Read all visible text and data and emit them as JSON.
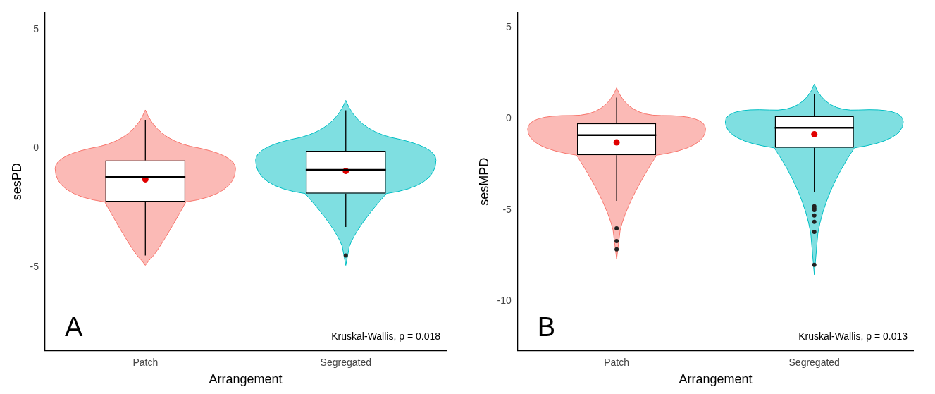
{
  "chart_data": [
    {
      "type": "box",
      "xlabel": "Arrangement",
      "ylabel": "sesPD",
      "categories": [
        "Patch",
        "Segregated"
      ],
      "boxes": [
        {
          "low": -4.5,
          "q1": -2.25,
          "median": -1.2,
          "q3": -0.5,
          "high": 1.2,
          "mean": -1.3
        },
        {
          "low": -3.3,
          "q1": -1.9,
          "median": -0.9,
          "q3": -0.1,
          "high": 1.6,
          "mean": -0.95,
          "outliers": [
            -4.5
          ]
        }
      ],
      "ylim": [
        -8.5,
        5.7
      ],
      "yticks": [
        -5,
        0,
        5
      ],
      "grid": false,
      "legend": false,
      "annotations": [
        "A",
        "Kruskal-Wallis, p = 0.018"
      ]
    },
    {
      "type": "box",
      "xlabel": "Arrangement",
      "ylabel": "sesMPD",
      "categories": [
        "Patch",
        "Segregated"
      ],
      "boxes": [
        {
          "low": -4.5,
          "q1": -2.0,
          "median": -0.9,
          "q3": -0.25,
          "high": 1.15,
          "mean": -1.3,
          "outliers": [
            -6.0,
            -6.7,
            -7.15
          ]
        },
        {
          "low": -4.0,
          "q1": -1.6,
          "median": -0.5,
          "q3": 0.15,
          "high": 1.35,
          "mean": -0.85,
          "outliers": [
            -4.8,
            -4.9,
            -5.0,
            -5.3,
            -5.65,
            -6.2,
            -8.0
          ]
        }
      ],
      "ylim": [
        -12.7,
        5.8
      ],
      "yticks": [
        -10,
        -5,
        0,
        5
      ],
      "grid": false,
      "legend": false,
      "annotations": [
        "B",
        "Kruskal-Wallis, p = 0.013"
      ]
    }
  ]
}
